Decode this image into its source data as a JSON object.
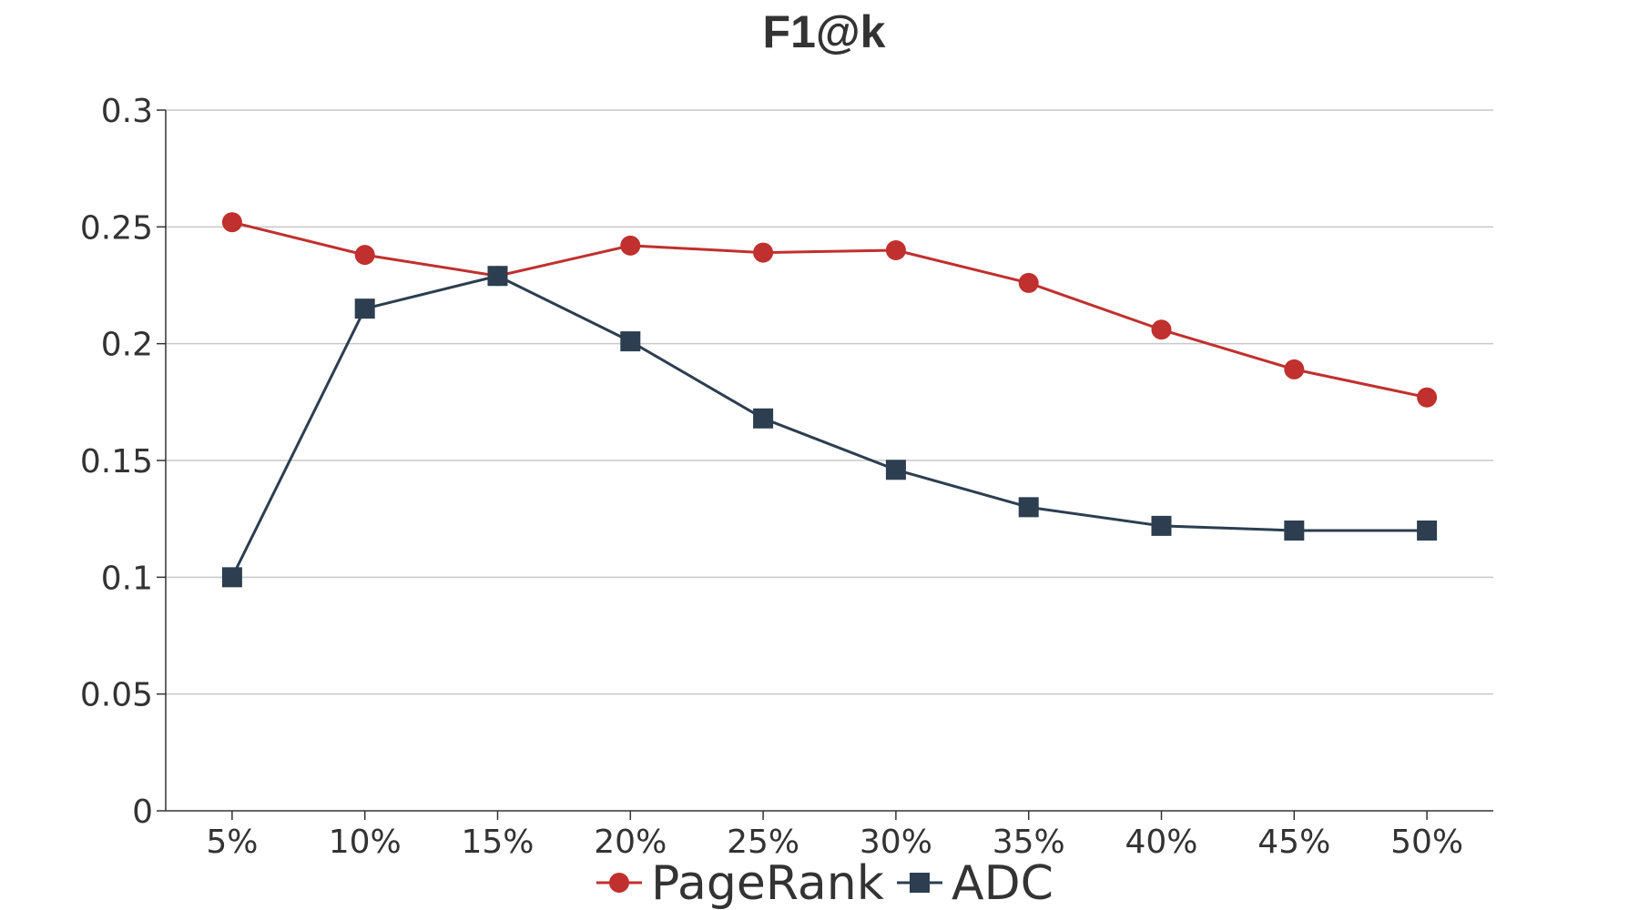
{
  "chart_data": {
    "type": "line",
    "title": "F1@k",
    "xlabel": "",
    "ylabel": "",
    "categories": [
      "5%",
      "10%",
      "15%",
      "20%",
      "25%",
      "30%",
      "35%",
      "40%",
      "45%",
      "50%"
    ],
    "ylim": [
      0,
      0.3
    ],
    "yticks": [
      0,
      0.05,
      0.1,
      0.15,
      0.2,
      0.25,
      0.3
    ],
    "ytick_labels": [
      "0",
      "0.05",
      "0.1",
      "0.15",
      "0.2",
      "0.25",
      "0.3"
    ],
    "grid": true,
    "legend_position": "bottom",
    "series": [
      {
        "name": "PageRank",
        "marker": "circle",
        "color": "#c0302e",
        "values": [
          0.252,
          0.238,
          0.229,
          0.242,
          0.239,
          0.24,
          0.226,
          0.206,
          0.189,
          0.177
        ]
      },
      {
        "name": "ADC",
        "marker": "square",
        "color": "#2c3e50",
        "values": [
          0.1,
          0.215,
          0.229,
          0.201,
          0.168,
          0.146,
          0.13,
          0.122,
          0.12,
          0.12
        ]
      }
    ]
  },
  "colors": {
    "grid": "#c8c8c8",
    "axis": "#333333",
    "text": "#333333"
  }
}
